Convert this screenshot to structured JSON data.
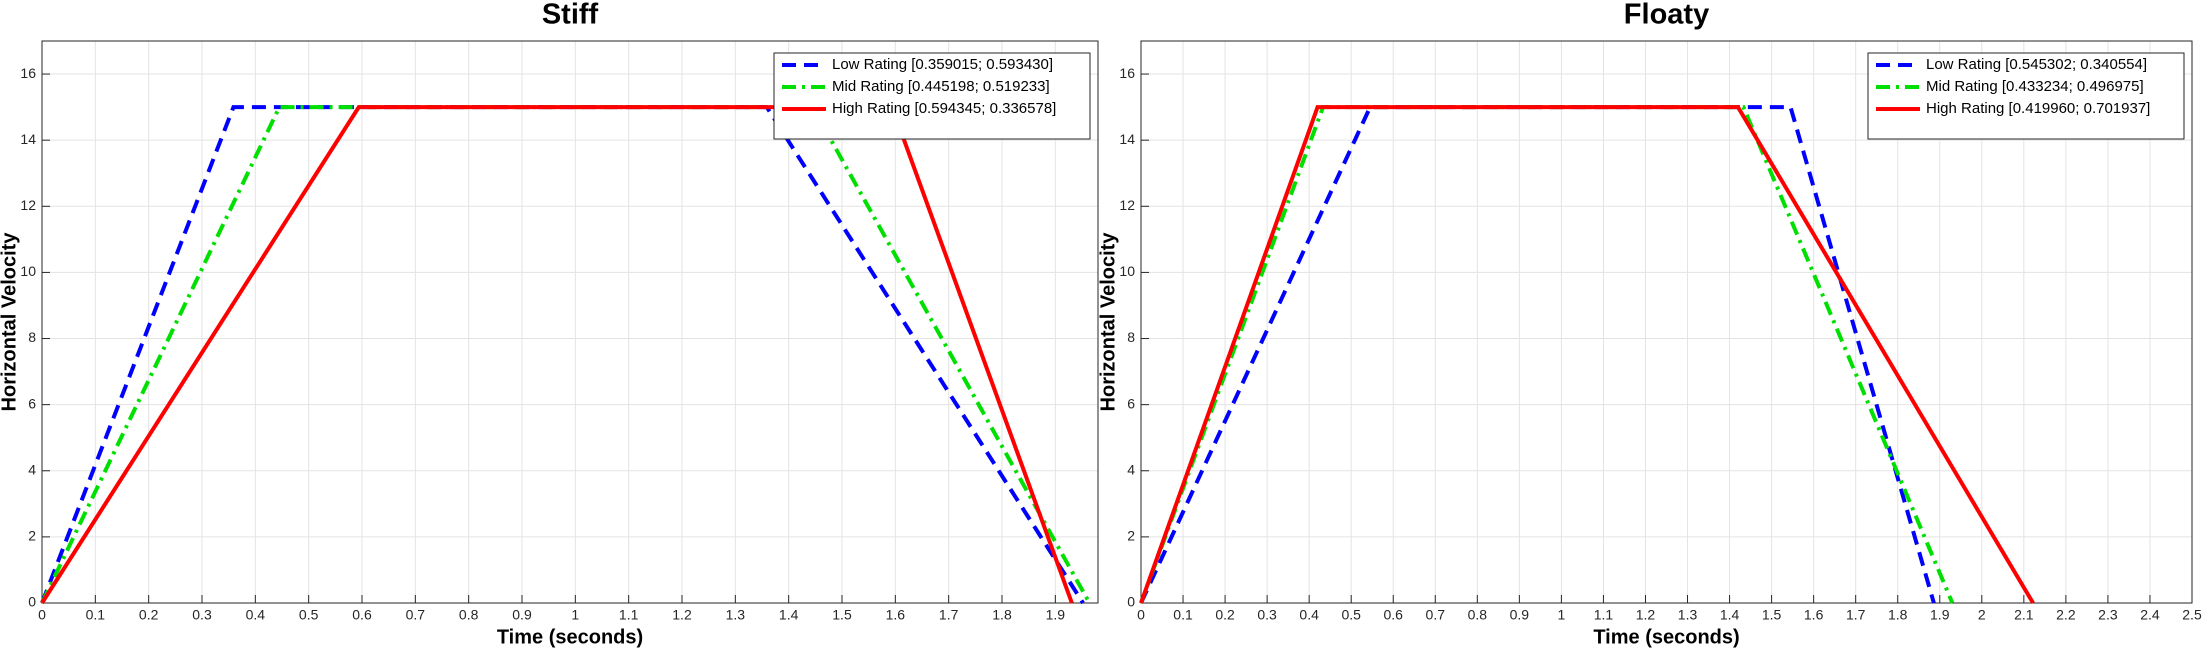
{
  "chart_data": [
    {
      "type": "line",
      "title": "Stiff",
      "x_label": "Time (seconds)",
      "y_label": "Horizontal Velocity",
      "xlim": [
        0,
        1.98
      ],
      "ylim": [
        0,
        17
      ],
      "xticks": [
        0,
        0.1,
        0.2,
        0.3,
        0.4,
        0.5,
        0.6,
        0.7,
        0.8,
        0.9,
        1,
        1.1,
        1.2,
        1.3,
        1.4,
        1.5,
        1.6,
        1.7,
        1.8,
        1.9
      ],
      "yticks": [
        0,
        2,
        4,
        6,
        8,
        10,
        12,
        14,
        16
      ],
      "grid": true,
      "legend": "upper right",
      "series": [
        {
          "name": "Low Rating [0.359015; 0.593430]",
          "color": "#0000ff",
          "line_style": "dashed",
          "x": [
            0,
            0.359,
            1.359,
            1.952
          ],
          "values": [
            0,
            15,
            15,
            0
          ]
        },
        {
          "name": "Mid Rating [0.445198; 0.519233]",
          "color": "#00e000",
          "line_style": "dashdot",
          "x": [
            0,
            0.445,
            1.445,
            1.964
          ],
          "values": [
            0,
            15,
            15,
            0
          ]
        },
        {
          "name": "High Rating [0.594345; 0.336578]",
          "color": "#ff0000",
          "line_style": "solid",
          "x": [
            0,
            0.594,
            1.594,
            1.931
          ],
          "values": [
            0,
            15,
            15,
            0
          ]
        }
      ]
    },
    {
      "type": "line",
      "title": "Floaty",
      "x_label": "Time (seconds)",
      "y_label": "Horizontal Velocity",
      "xlim": [
        0,
        2.5
      ],
      "ylim": [
        0,
        17
      ],
      "xticks": [
        0,
        0.1,
        0.2,
        0.3,
        0.4,
        0.5,
        0.6,
        0.7,
        0.8,
        0.9,
        1,
        1.1,
        1.2,
        1.3,
        1.4,
        1.5,
        1.6,
        1.7,
        1.8,
        1.9,
        2,
        2.1,
        2.2,
        2.3,
        2.4,
        2.5
      ],
      "yticks": [
        0,
        2,
        4,
        6,
        8,
        10,
        12,
        14,
        16
      ],
      "grid": true,
      "legend": "upper right",
      "series": [
        {
          "name": "Low Rating [0.545302; 0.340554]",
          "color": "#0000ff",
          "line_style": "dashed",
          "x": [
            0,
            0.545,
            1.545,
            1.886
          ],
          "values": [
            0,
            15,
            15,
            0
          ]
        },
        {
          "name": "Mid Rating [0.433234; 0.496975]",
          "color": "#00e000",
          "line_style": "dashdot",
          "x": [
            0,
            0.433,
            1.433,
            1.93
          ],
          "values": [
            0,
            15,
            15,
            0
          ]
        },
        {
          "name": "High Rating [0.419960; 0.701937]",
          "color": "#ff0000",
          "line_style": "solid",
          "x": [
            0,
            0.42,
            1.42,
            2.122
          ],
          "values": [
            0,
            15,
            15,
            0
          ]
        }
      ]
    }
  ]
}
